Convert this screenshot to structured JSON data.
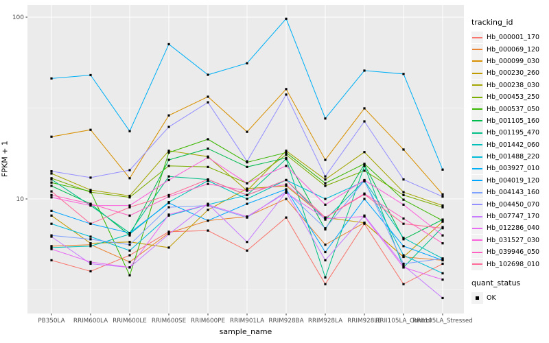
{
  "chart_data": {
    "type": "line",
    "title": "",
    "xlabel": "sample_name",
    "ylabel": "FPKM + 1",
    "y_scale": "log10",
    "ylim": [
      2.2,
      116
    ],
    "grid": "on",
    "legend_position": "right",
    "legend_title": "tracking_id",
    "quant_legend": {
      "title": "quant_status",
      "items": [
        {
          "label": "OK",
          "marker": "filled-black-square"
        }
      ]
    },
    "y_ticks": [
      {
        "value": 100,
        "label": "100"
      },
      {
        "value": 10,
        "label": "10"
      }
    ],
    "y_minor_breaks": [
      31.623,
      3.1623
    ],
    "categories": [
      "PB350LA",
      "RRIM600LA",
      "RRIM600LE",
      "RRIM600SE",
      "RRIM600PE",
      "RRIM901LA",
      "RRIM928BA",
      "RRIM928LA",
      "RRIM928LE",
      "RRII105LA_Control",
      "RRII105LA_Stressed"
    ],
    "series": [
      {
        "name": "Hb_000001_170",
        "color": "#F8766D",
        "values": [
          4.6,
          4.0,
          4.9,
          6.6,
          6.7,
          5.2,
          7.9,
          3.4,
          7.3,
          3.4,
          4.4
        ]
      },
      {
        "name": "Hb_000069_120",
        "color": "#EA8331",
        "values": [
          5.5,
          5.6,
          4.5,
          6.5,
          7.6,
          8.0,
          10.0,
          5.6,
          7.4,
          4.8,
          4.6
        ]
      },
      {
        "name": "Hb_000099_030",
        "color": "#D89000",
        "values": [
          22.0,
          24.0,
          13.0,
          28.8,
          36.5,
          23.4,
          40.2,
          16.4,
          31.5,
          18.7,
          10.6
        ]
      },
      {
        "name": "Hb_000230_260",
        "color": "#C09B00",
        "values": [
          8.1,
          5.7,
          5.8,
          5.4,
          8.7,
          11.4,
          11.8,
          7.9,
          7.4,
          4.8,
          7.5
        ]
      },
      {
        "name": "Hb_000238_030",
        "color": "#A3A500",
        "values": [
          13.8,
          11.2,
          10.4,
          18.4,
          17.1,
          11.1,
          18.4,
          12.8,
          18.1,
          10.9,
          9.2
        ]
      },
      {
        "name": "Hb_000453_250",
        "color": "#7CAE00",
        "values": [
          13.0,
          10.9,
          10.2,
          15.2,
          15.0,
          12.2,
          17.5,
          11.8,
          14.3,
          10.5,
          9.0
        ]
      },
      {
        "name": "Hb_000537_050",
        "color": "#39B600",
        "values": [
          12.3,
          11.0,
          3.8,
          18.0,
          21.3,
          15.9,
          18.0,
          12.2,
          15.6,
          9.9,
          7.6
        ]
      },
      {
        "name": "Hb_001105_160",
        "color": "#00BB4E",
        "values": [
          11.8,
          9.4,
          6.3,
          16.4,
          18.9,
          15.0,
          16.8,
          6.8,
          15.5,
          6.0,
          7.7
        ]
      },
      {
        "name": "Hb_001195_470",
        "color": "#00C087",
        "values": [
          12.8,
          9.2,
          6.5,
          13.3,
          12.8,
          10.5,
          16.6,
          3.7,
          15.2,
          4.2,
          7.0
        ]
      },
      {
        "name": "Hb_001442_060",
        "color": "#00C0B8",
        "values": [
          5.4,
          5.5,
          6.4,
          9.6,
          12.6,
          10.0,
          12.7,
          7.7,
          12.6,
          6.1,
          4.7
        ]
      },
      {
        "name": "Hb_001488_220",
        "color": "#00BCD8",
        "values": [
          7.3,
          6.2,
          5.2,
          8.1,
          9.3,
          10.5,
          12.7,
          10.0,
          12.5,
          4.9,
          3.9
        ]
      },
      {
        "name": "Hb_003927_010",
        "color": "#00B0F6",
        "values": [
          46.0,
          48.0,
          23.6,
          71.0,
          48.2,
          55.8,
          98.0,
          27.7,
          50.8,
          48.7,
          14.5
        ]
      },
      {
        "name": "Hb_004019_120",
        "color": "#00A5FF",
        "values": [
          8.6,
          7.3,
          6.5,
          9.5,
          7.6,
          9.4,
          11.3,
          5.1,
          10.0,
          5.5,
          4.6
        ]
      },
      {
        "name": "Hb_004143_160",
        "color": "#7DA1FF",
        "values": [
          6.3,
          6.0,
          5.6,
          9.0,
          9.2,
          7.9,
          11.0,
          6.9,
          12.6,
          4.4,
          4.7
        ]
      },
      {
        "name": "Hb_004450_070",
        "color": "#9590FF",
        "values": [
          14.2,
          13.1,
          14.4,
          24.9,
          34.0,
          16.1,
          37.5,
          13.3,
          26.7,
          12.8,
          10.3
        ]
      },
      {
        "name": "Hb_007747_170",
        "color": "#C77CFF",
        "values": [
          6.2,
          4.4,
          4.2,
          6.4,
          9.4,
          5.8,
          10.9,
          4.6,
          8.1,
          4.3,
          2.85
        ]
      },
      {
        "name": "Hb_012286_040",
        "color": "#E76BF3",
        "values": [
          5.3,
          4.5,
          4.2,
          8.2,
          9.3,
          8.0,
          10.8,
          7.8,
          8.0,
          4.2,
          3.6
        ]
      },
      {
        "name": "Hb_031527_030",
        "color": "#FA62DB",
        "values": [
          10.2,
          9.2,
          9.2,
          12.7,
          16.9,
          12.2,
          15.2,
          9.3,
          12.7,
          9.3,
          6.3
        ]
      },
      {
        "name": "Hb_039946_050",
        "color": "#FF61C3",
        "values": [
          10.5,
          9.4,
          8.1,
          10.3,
          12.1,
          11.1,
          12.0,
          7.9,
          10.7,
          7.8,
          5.7
        ]
      },
      {
        "name": "Hb_102698_010",
        "color": "#FF6A98",
        "values": [
          11.0,
          7.3,
          9.0,
          10.5,
          12.8,
          10.5,
          12.7,
          7.9,
          10.6,
          7.3,
          6.9
        ]
      }
    ],
    "style": {
      "panel_color": "#EBEBEB",
      "grid_color": "#FFFFFF",
      "marker_color": "#000000",
      "axis_text_color": "#4D4D4D",
      "tick_color": "#333333",
      "key_bg": "#F2F2F2"
    }
  }
}
